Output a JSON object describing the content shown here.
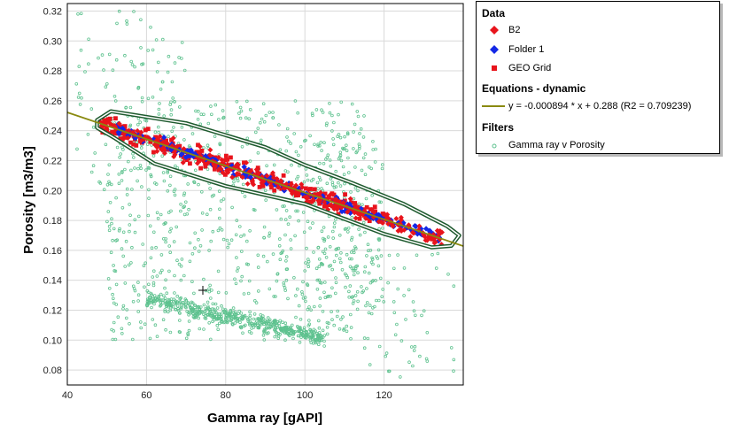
{
  "chart_data": {
    "type": "scatter",
    "xlabel": "Gamma ray [gAPI]",
    "ylabel": "Porosity [m3/m3]",
    "xlim": [
      40,
      140
    ],
    "ylim": [
      0.07,
      0.325
    ],
    "x_ticks": [
      "40",
      "60",
      "80",
      "100",
      "120"
    ],
    "y_ticks": [
      "0.08",
      "0.10",
      "0.12",
      "0.14",
      "0.16",
      "0.18",
      "0.20",
      "0.22",
      "0.24",
      "0.26",
      "0.28",
      "0.30",
      "0.32"
    ],
    "grid": true,
    "series": [
      {
        "name": "Gamma ray v Porosity",
        "color": "#5ec28f",
        "marker": "circle",
        "clusters": [
          {
            "x": [
              60,
              105
            ],
            "y": [
              0.095,
              0.135
            ],
            "count": 500
          },
          {
            "x": [
              50,
              115
            ],
            "y": [
              0.1,
              0.26
            ],
            "count": 700
          },
          {
            "x": [
              42,
              70
            ],
            "y": [
              0.2,
              0.32
            ],
            "count": 110
          },
          {
            "x": [
              100,
              120
            ],
            "y": [
              0.12,
              0.24
            ],
            "count": 160
          },
          {
            "x": [
              115,
              138
            ],
            "y": [
              0.075,
              0.16
            ],
            "count": 60
          }
        ]
      },
      {
        "name": "B2",
        "color": "#e8141c",
        "marker": "diamond",
        "line_fit": {
          "slope": -0.000894,
          "intercept": 0.288
        },
        "spread": 0.012,
        "x_range": [
          48,
          136
        ],
        "count": 260
      },
      {
        "name": "Folder 1",
        "color": "#1428e6",
        "marker": "diamond",
        "line_fit": {
          "slope": -0.000894,
          "intercept": 0.288
        },
        "spread": 0.008,
        "x_range": [
          52,
          134
        ],
        "count": 240
      },
      {
        "name": "GEO Grid",
        "color": "#e8141c",
        "marker": "square",
        "line_fit": {
          "slope": -0.000894,
          "intercept": 0.288
        },
        "spread": 0.013,
        "x_range": [
          48,
          120
        ],
        "count": 260
      }
    ],
    "trendline": {
      "slope": -0.000894,
      "intercept": 0.288,
      "r2": 0.709239,
      "color": "#8a8a10"
    },
    "envelope": {
      "color": "#1e5a2e"
    },
    "legend_position": "top-right"
  },
  "legend": {
    "data_header": "Data",
    "equations_header": "Equations - dynamic",
    "filters_header": "Filters",
    "items": {
      "b2": "B2",
      "folder1": "Folder 1",
      "geogrid": "GEO Grid",
      "equation": "y = -0.000894 * x + 0.288 (R2 = 0.709239)",
      "filter": "Gamma ray v Porosity"
    }
  }
}
